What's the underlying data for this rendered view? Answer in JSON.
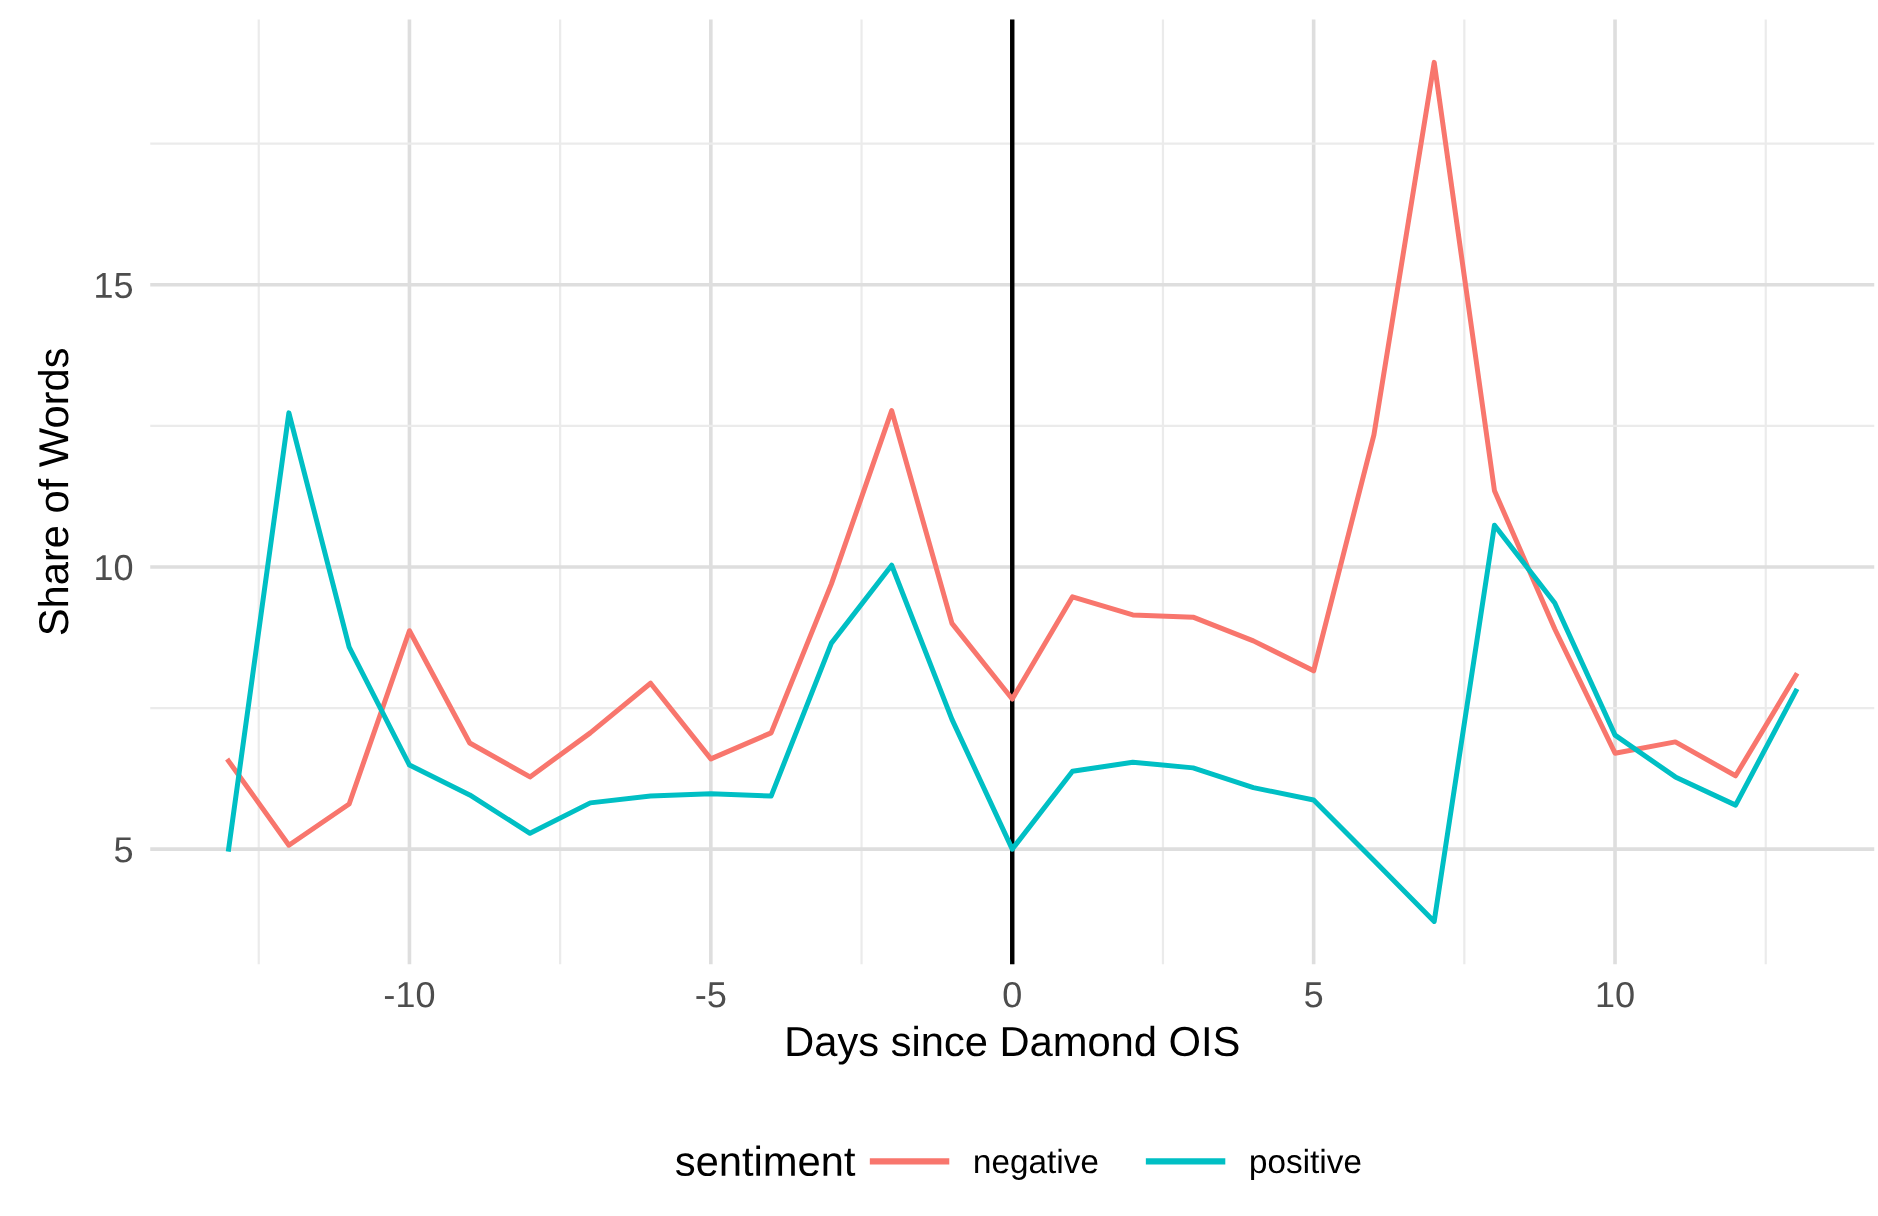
{
  "chart_data": {
    "type": "line",
    "xlabel": "Days since Damond OIS",
    "ylabel": "Share of Words",
    "legend_title": "sentiment",
    "legend": "bottom",
    "grid": true,
    "line_style": "solid",
    "xlim": [
      -14.3,
      14.3
    ],
    "ylim": [
      2.96,
      19.7
    ],
    "xticks": [
      {
        "value": -12.5,
        "label": null
      },
      -10,
      {
        "value": -7.5,
        "label": null
      },
      -5,
      {
        "value": -2.5,
        "label": null
      },
      0,
      {
        "value": 2.5,
        "label": null
      },
      5,
      {
        "value": 7.5,
        "label": null
      },
      10,
      {
        "value": 12.5,
        "label": null
      }
    ],
    "yticks": [
      5,
      {
        "value": 7.5,
        "label": null
      },
      10,
      {
        "value": 12.5,
        "label": null
      },
      15,
      {
        "value": 17.5,
        "label": null
      }
    ],
    "x": [
      -13,
      -12,
      -11,
      -10,
      -9,
      -8,
      -7,
      -6,
      -5,
      -4,
      -3,
      -2,
      -1,
      0,
      1,
      2,
      3,
      4,
      5,
      6,
      7,
      8,
      9,
      10,
      11,
      12,
      13
    ],
    "series": [
      {
        "name": "negative",
        "color": "#f8766d",
        "values": [
          6.56,
          5.07,
          5.8,
          8.87,
          6.88,
          6.28,
          7.06,
          7.94,
          6.6,
          7.06,
          9.7,
          12.77,
          9.0,
          7.66,
          9.47,
          9.15,
          9.11,
          8.69,
          8.16,
          12.34,
          18.94,
          11.35,
          8.9,
          6.7,
          6.9,
          6.3,
          8.08
        ]
      },
      {
        "name": "positive",
        "color": "#00bfc4",
        "values": [
          5.0,
          12.73,
          8.58,
          6.49,
          5.96,
          5.28,
          5.82,
          5.94,
          5.98,
          5.94,
          8.65,
          10.03,
          7.3,
          5.0,
          6.38,
          6.54,
          6.44,
          6.09,
          5.87,
          4.8,
          3.72,
          10.74,
          9.36,
          7.02,
          6.28,
          5.78,
          7.8
        ]
      }
    ],
    "ref_lines": [
      {
        "axis": "x",
        "value": 0,
        "color": "#000000",
        "line_style": "solid"
      }
    ]
  }
}
